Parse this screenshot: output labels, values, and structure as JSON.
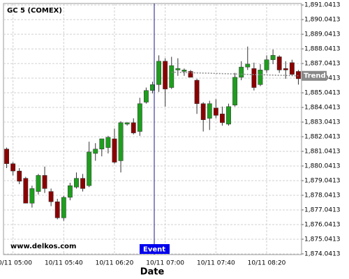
{
  "chart_data": {
    "type": "candlestick",
    "title": "GC 5 (COMEX)",
    "x_label": "Date",
    "watermark": "www.delkos.com",
    "event_label": "Event",
    "categories": [
      null,
      "10/11 05:00",
      null,
      null,
      null,
      null,
      null,
      null,
      null,
      "10/11 05:40",
      null,
      null,
      null,
      null,
      null,
      null,
      null,
      "10/11 06:20",
      null,
      null,
      null,
      null,
      null,
      null,
      null,
      "10/11 07:00",
      null,
      null,
      null,
      null,
      null,
      null,
      null,
      "10/11 07:40",
      null,
      null,
      null,
      null,
      null,
      null,
      null,
      "10/11 08:20",
      null,
      null,
      null,
      null,
      null
    ],
    "open": [
      1881.2,
      1880.2,
      1879.7,
      1879.2,
      1877.5,
      1878.3,
      1879.4,
      1878.3,
      1877.6,
      1876.5,
      1877.9,
      1878.6,
      1879.2,
      1878.7,
      1880.9,
      1881.2,
      1881.3,
      1881.9,
      1880.4,
      1882.9,
      1883.0,
      1882.4,
      1884.4,
      1885.2,
      1885.6,
      1887.2,
      1885.4,
      1886.6,
      1886.5,
      1886.5,
      1885.9,
      1884.3,
      1883.3,
      1884.0,
      1883.6,
      1882.9,
      1884.2,
      1886.1,
      1886.8,
      1886.7,
      1885.6,
      1886.6,
      1887.3,
      1887.5,
      1886.7,
      1887.1,
      1886.5
    ],
    "high": [
      1881.3,
      1880.3,
      1879.9,
      1879.3,
      1878.7,
      1879.5,
      1880.0,
      1878.5,
      1877.8,
      1878.0,
      1878.9,
      1879.6,
      1879.5,
      1881.7,
      1881.6,
      1881.9,
      1882.1,
      1882.6,
      1883.1,
      1883.0,
      1883.3,
      1884.7,
      1885.4,
      1885.8,
      1887.6,
      1887.4,
      1887.5,
      1887.4,
      1886.7,
      1886.6,
      1886.0,
      1884.4,
      1884.5,
      1884.6,
      1884.1,
      1884.3,
      1886.4,
      1887.2,
      1888.2,
      1887.1,
      1887.0,
      1887.6,
      1888.0,
      1887.6,
      1887.2,
      1887.3,
      1886.6
    ],
    "low": [
      1879.9,
      1879.4,
      1878.8,
      1877.5,
      1877.2,
      1878.1,
      1878.2,
      1877.3,
      1876.4,
      1876.3,
      1877.7,
      1878.5,
      1878.3,
      1878.6,
      1880.4,
      1880.7,
      1880.9,
      1880.2,
      1879.6,
      1882.8,
      1882.2,
      1882.1,
      1884.3,
      1885.0,
      1885.1,
      1884.1,
      1885.3,
      1886.2,
      1886.2,
      1886.1,
      1883.6,
      1882.4,
      1882.5,
      1883.3,
      1882.8,
      1882.8,
      1884.1,
      1885.9,
      1886.6,
      1885.2,
      1885.5,
      1886.4,
      1887.0,
      1886.4,
      1886.0,
      1886.2,
      1885.6
    ],
    "close": [
      1880.2,
      1879.7,
      1879.0,
      1877.5,
      1878.5,
      1879.4,
      1878.5,
      1877.6,
      1876.5,
      1877.9,
      1878.7,
      1879.2,
      1878.5,
      1881.0,
      1881.2,
      1881.9,
      1882.0,
      1880.3,
      1883.0,
      1883.0,
      1882.3,
      1884.3,
      1885.2,
      1885.6,
      1887.2,
      1885.3,
      1886.9,
      1886.7,
      1886.6,
      1886.1,
      1884.3,
      1883.2,
      1884.3,
      1883.5,
      1883.0,
      1884.1,
      1886.1,
      1886.8,
      1887.0,
      1885.4,
      1886.6,
      1887.3,
      1887.6,
      1886.6,
      1886.6,
      1886.3,
      1886.0
    ],
    "up_color": "#1e9e1e",
    "down_color": "#8b0000",
    "trend": {
      "name": "Trend",
      "color": "#888888",
      "values": [
        null,
        null,
        null,
        null,
        null,
        null,
        null,
        null,
        null,
        null,
        null,
        null,
        null,
        null,
        null,
        null,
        null,
        null,
        null,
        null,
        null,
        null,
        null,
        null,
        null,
        null,
        1886.45,
        1886.44,
        1886.43,
        1886.41,
        1886.4,
        1886.39,
        1886.38,
        1886.36,
        1886.35,
        1886.34,
        1886.33,
        1886.31,
        1886.3,
        1886.29,
        1886.28,
        1886.26,
        1886.25,
        1886.24,
        1886.23,
        1886.21,
        1886.2
      ]
    },
    "ylim": [
      1873.9913,
      1891.1413
    ],
    "yticks": [
      {
        "value": 1874.0413,
        "label": "1,874.0413"
      },
      {
        "value": 1875.0413,
        "label": "1,875.0413"
      },
      {
        "value": 1876.0413,
        "label": "1,876.0413"
      },
      {
        "value": 1877.0413,
        "label": "1,877.0413"
      },
      {
        "value": 1878.0413,
        "label": "1,878.0413"
      },
      {
        "value": 1879.0413,
        "label": "1,879.0413"
      },
      {
        "value": 1880.0413,
        "label": "1,880.0413"
      },
      {
        "value": 1881.0413,
        "label": "1,881.0413"
      },
      {
        "value": 1882.0413,
        "label": "1,882.0413"
      },
      {
        "value": 1883.0413,
        "label": "1,883.0413"
      },
      {
        "value": 1884.0413,
        "label": "1,884.0413"
      },
      {
        "value": 1885.0413,
        "label": "1,885.0413"
      },
      {
        "value": 1886.0413,
        "label": "1,886.0413"
      },
      {
        "value": 1887.0413,
        "label": "1,887.0413"
      },
      {
        "value": 1888.0413,
        "label": "1,888.0413"
      },
      {
        "value": 1889.0413,
        "label": "1,889.0413"
      },
      {
        "value": 1890.0413,
        "label": "1,890.0413"
      },
      {
        "value": 1891.0413,
        "label": "1,891.0413"
      }
    ],
    "grid": true
  }
}
